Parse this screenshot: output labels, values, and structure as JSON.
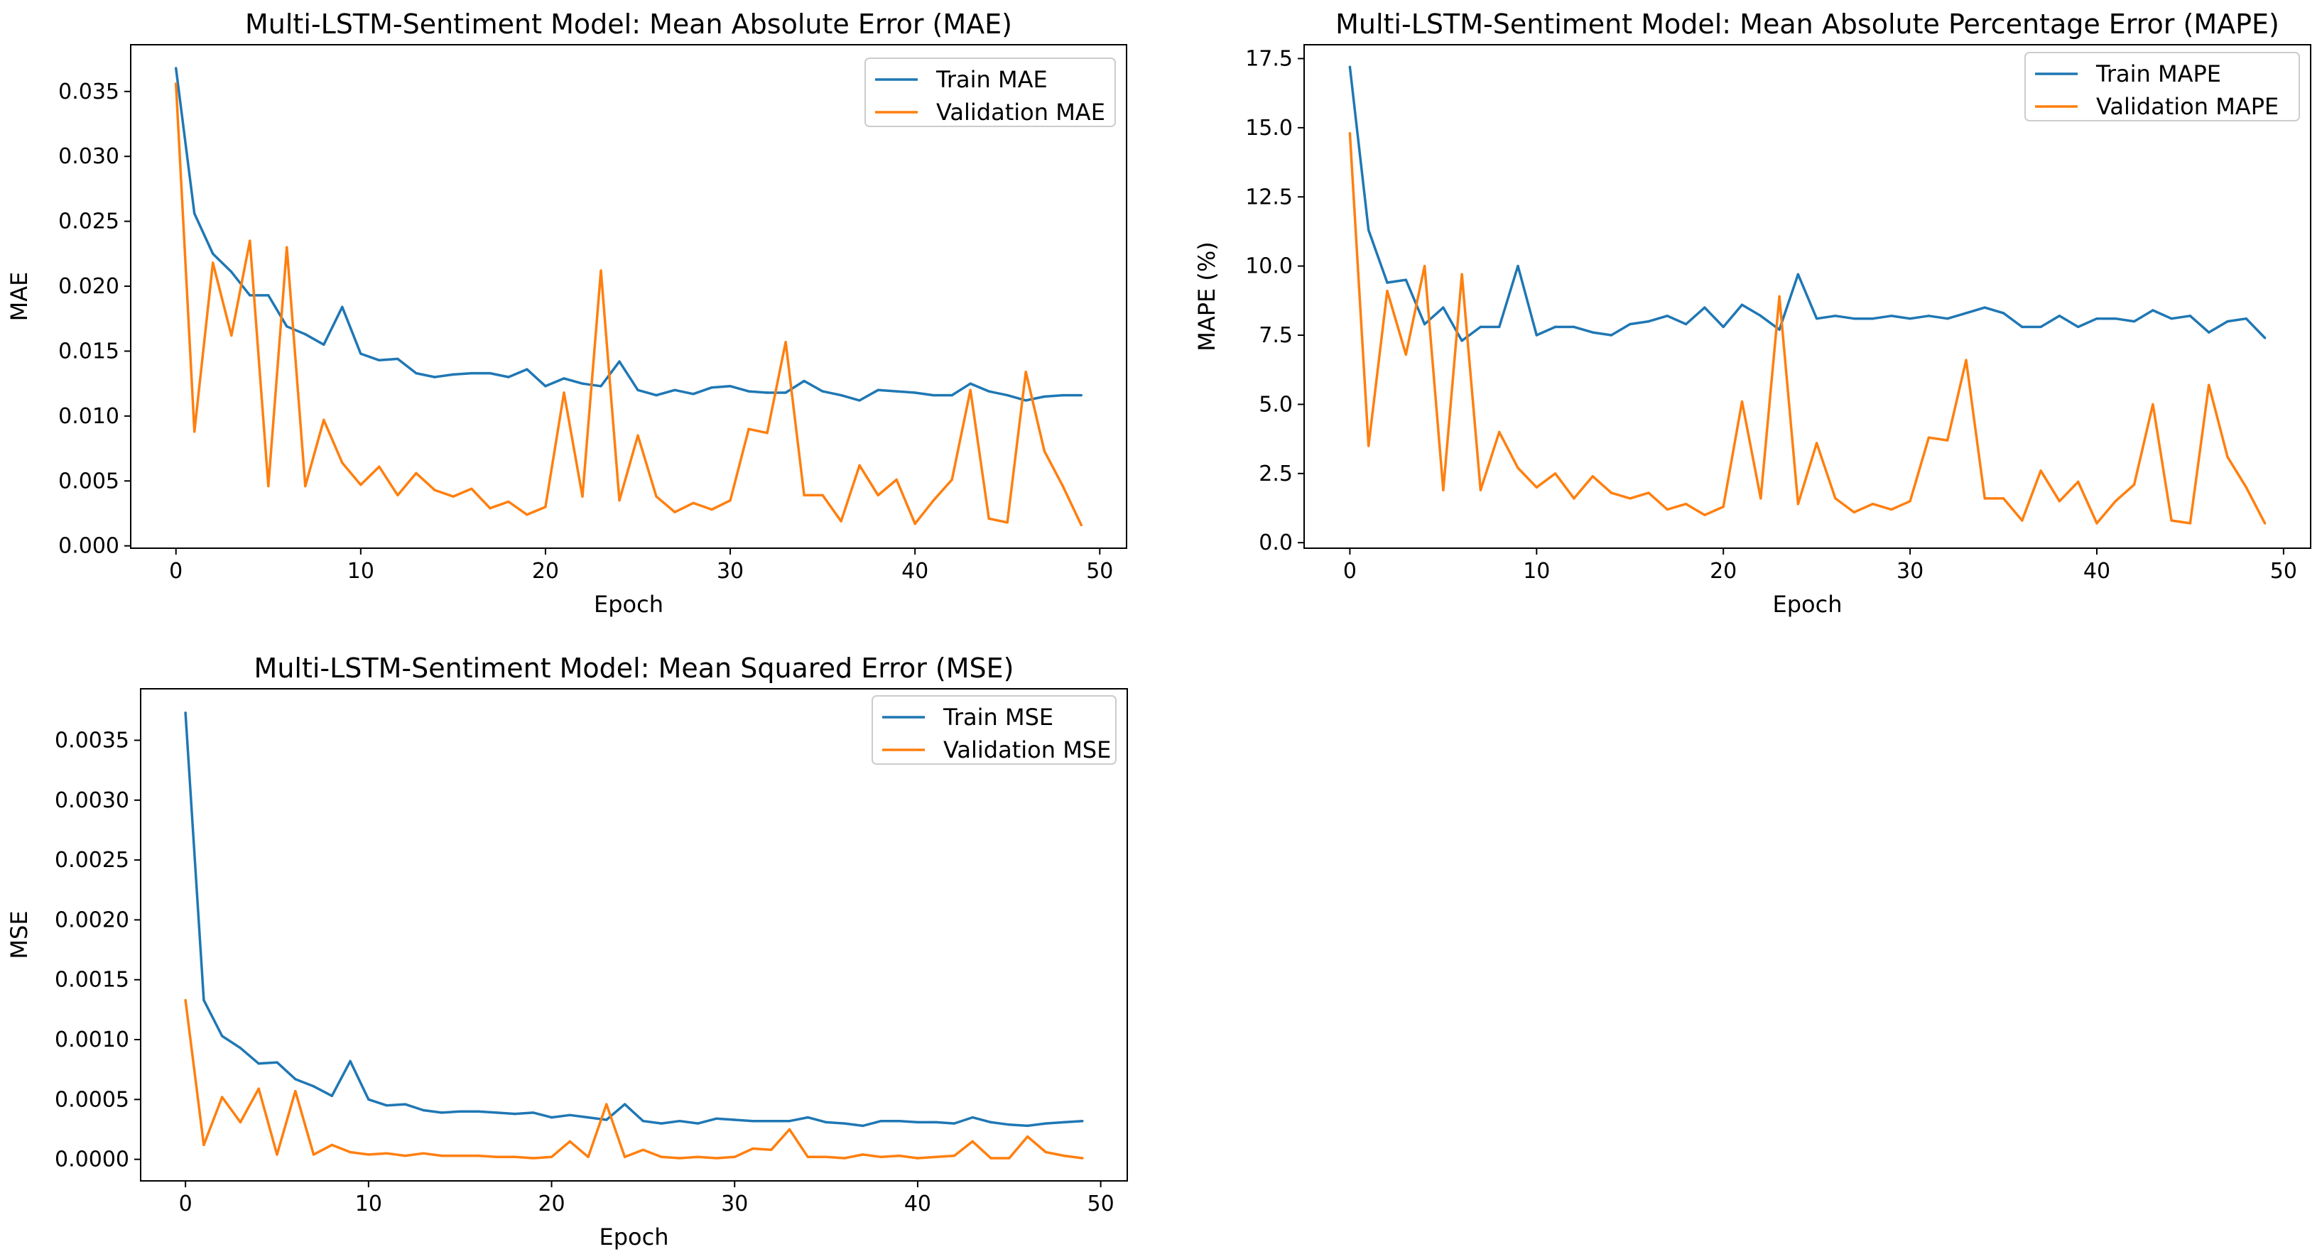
{
  "chart_data": [
    {
      "id": "mae",
      "type": "line",
      "title": "Multi-LSTM-Sentiment Model: Mean Absolute Error (MAE)",
      "xlabel": "Epoch",
      "ylabel": "MAE",
      "xlim": [
        -2.45,
        51.45
      ],
      "ylim": [
        -0.00018,
        0.0386
      ],
      "xticks": [
        0,
        10,
        20,
        30,
        40,
        50
      ],
      "yticks": [
        0.0,
        0.005,
        0.01,
        0.015,
        0.02,
        0.025,
        0.03,
        0.035
      ],
      "ytick_labels": [
        "0.000",
        "0.005",
        "0.010",
        "0.015",
        "0.020",
        "0.025",
        "0.030",
        "0.035"
      ],
      "legend_position": "top-right",
      "series": [
        {
          "name": "Train MAE",
          "color": "#1f77b4",
          "values": [
            0.0368,
            0.0256,
            0.0225,
            0.0211,
            0.0193,
            0.0193,
            0.0169,
            0.0163,
            0.0155,
            0.0184,
            0.0148,
            0.0143,
            0.0144,
            0.0133,
            0.013,
            0.0132,
            0.0133,
            0.0133,
            0.013,
            0.0136,
            0.0123,
            0.0129,
            0.0125,
            0.0123,
            0.0142,
            0.012,
            0.0116,
            0.012,
            0.0117,
            0.0122,
            0.0123,
            0.0119,
            0.0118,
            0.0118,
            0.0127,
            0.0119,
            0.0116,
            0.0112,
            0.012,
            0.0119,
            0.0118,
            0.0116,
            0.0116,
            0.0125,
            0.0119,
            0.0116,
            0.0112,
            0.0115,
            0.0116,
            0.0116
          ]
        },
        {
          "name": "Validation MAE",
          "color": "#ff7f0e",
          "values": [
            0.0356,
            0.0088,
            0.0218,
            0.0162,
            0.0235,
            0.0046,
            0.023,
            0.0046,
            0.0097,
            0.0064,
            0.0047,
            0.0061,
            0.0039,
            0.0056,
            0.0043,
            0.0038,
            0.0044,
            0.0029,
            0.0034,
            0.0024,
            0.003,
            0.0118,
            0.0038,
            0.0212,
            0.0035,
            0.0085,
            0.0038,
            0.0026,
            0.0033,
            0.0028,
            0.0035,
            0.009,
            0.0087,
            0.0157,
            0.0039,
            0.0039,
            0.0019,
            0.0062,
            0.0039,
            0.0051,
            0.0017,
            0.0035,
            0.0051,
            0.012,
            0.0021,
            0.0018,
            0.0134,
            0.0073,
            0.0046,
            0.0016
          ]
        }
      ]
    },
    {
      "id": "mape",
      "type": "line",
      "title": "Multi-LSTM-Sentiment Model: Mean Absolute Percentage Error (MAPE)",
      "xlabel": "Epoch",
      "ylabel": "MAPE (%)",
      "xlim": [
        -2.45,
        51.45
      ],
      "ylim": [
        -0.2,
        18.0
      ],
      "xticks": [
        0,
        10,
        20,
        30,
        40,
        50
      ],
      "yticks": [
        0.0,
        2.5,
        5.0,
        7.5,
        10.0,
        12.5,
        15.0,
        17.5
      ],
      "ytick_labels": [
        "0.0",
        "2.5",
        "5.0",
        "7.5",
        "10.0",
        "12.5",
        "15.0",
        "17.5"
      ],
      "legend_position": "top-right",
      "series": [
        {
          "name": "Train MAPE",
          "color": "#1f77b4",
          "values": [
            17.2,
            11.3,
            9.4,
            9.5,
            7.9,
            8.5,
            7.3,
            7.8,
            7.8,
            10.0,
            7.5,
            7.8,
            7.8,
            7.6,
            7.5,
            7.9,
            8.0,
            8.2,
            7.9,
            8.5,
            7.8,
            8.6,
            8.2,
            7.7,
            9.7,
            8.1,
            8.2,
            8.1,
            8.1,
            8.2,
            8.1,
            8.2,
            8.1,
            8.3,
            8.5,
            8.3,
            7.8,
            7.8,
            8.2,
            7.8,
            8.1,
            8.1,
            8.0,
            8.4,
            8.1,
            8.2,
            7.6,
            8.0,
            8.1,
            7.4
          ]
        },
        {
          "name": "Validation MAPE",
          "color": "#ff7f0e",
          "values": [
            14.8,
            3.5,
            9.1,
            6.8,
            10.0,
            1.9,
            9.7,
            1.9,
            4.0,
            2.7,
            2.0,
            2.5,
            1.6,
            2.4,
            1.8,
            1.6,
            1.8,
            1.2,
            1.4,
            1.0,
            1.3,
            5.1,
            1.6,
            8.9,
            1.4,
            3.6,
            1.6,
            1.1,
            1.4,
            1.2,
            1.5,
            3.8,
            3.7,
            6.6,
            1.6,
            1.6,
            0.8,
            2.6,
            1.5,
            2.2,
            0.7,
            1.5,
            2.1,
            5.0,
            0.8,
            0.7,
            5.7,
            3.1,
            2.0,
            0.7
          ]
        }
      ]
    },
    {
      "id": "mse",
      "type": "line",
      "title": "Multi-LSTM-Sentiment Model: Mean Squared Error (MSE)",
      "xlabel": "Epoch",
      "ylabel": "MSE",
      "xlim": [
        -2.45,
        51.45
      ],
      "ylim": [
        -0.00018,
        0.00393
      ],
      "xticks": [
        0,
        10,
        20,
        30,
        40,
        50
      ],
      "yticks": [
        0.0,
        0.0005,
        0.001,
        0.0015,
        0.002,
        0.0025,
        0.003,
        0.0035
      ],
      "ytick_labels": [
        "0.0000",
        "0.0005",
        "0.0010",
        "0.0015",
        "0.0020",
        "0.0025",
        "0.0030",
        "0.0035"
      ],
      "legend_position": "top-right",
      "series": [
        {
          "name": "Train MSE",
          "color": "#1f77b4",
          "values": [
            0.00373,
            0.00133,
            0.00103,
            0.00093,
            0.0008,
            0.00081,
            0.00067,
            0.00061,
            0.00053,
            0.00082,
            0.0005,
            0.00045,
            0.00046,
            0.00041,
            0.00039,
            0.0004,
            0.0004,
            0.00039,
            0.00038,
            0.00039,
            0.00035,
            0.00037,
            0.00035,
            0.00033,
            0.00046,
            0.00032,
            0.0003,
            0.00032,
            0.0003,
            0.00034,
            0.00033,
            0.00032,
            0.00032,
            0.00032,
            0.00035,
            0.00031,
            0.0003,
            0.00028,
            0.00032,
            0.00032,
            0.00031,
            0.00031,
            0.0003,
            0.00035,
            0.00031,
            0.00029,
            0.00028,
            0.0003,
            0.00031,
            0.00032
          ]
        },
        {
          "name": "Validation MSE",
          "color": "#ff7f0e",
          "values": [
            0.00133,
            0.00012,
            0.00052,
            0.00031,
            0.00059,
            4e-05,
            0.00057,
            4e-05,
            0.00012,
            6e-05,
            4e-05,
            5e-05,
            3e-05,
            5e-05,
            3e-05,
            3e-05,
            3e-05,
            2e-05,
            2e-05,
            1e-05,
            2e-05,
            0.00015,
            2e-05,
            0.00046,
            2e-05,
            8e-05,
            2e-05,
            1e-05,
            2e-05,
            1e-05,
            2e-05,
            9e-05,
            8e-05,
            0.00025,
            2e-05,
            2e-05,
            1e-05,
            4e-05,
            2e-05,
            3e-05,
            1e-05,
            2e-05,
            3e-05,
            0.00015,
            1e-05,
            1e-05,
            0.00019,
            6e-05,
            3e-05,
            1e-05
          ]
        }
      ]
    }
  ]
}
